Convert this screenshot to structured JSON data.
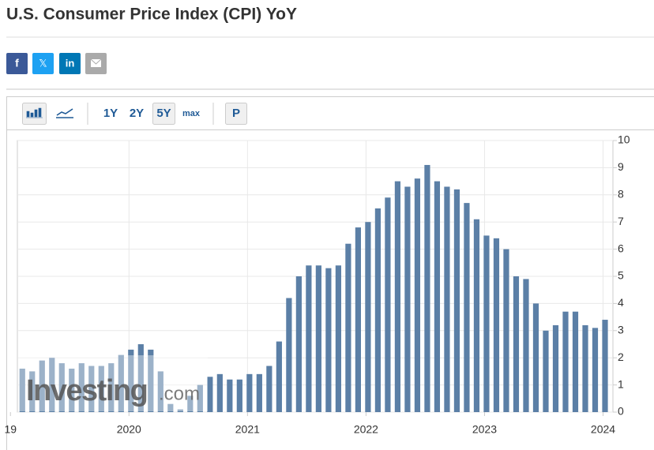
{
  "title": "U.S. Consumer Price Index (CPI) YoY",
  "share_buttons": [
    "f",
    "𝕏",
    "in"
  ],
  "toolbar": {
    "ranges": [
      "1Y",
      "2Y",
      "5Y",
      "max"
    ],
    "print": "P"
  },
  "chart_data": {
    "type": "bar",
    "watermark": [
      "Investing",
      ".com"
    ],
    "color": "#5b7fa6",
    "categories": [
      null,
      null,
      null,
      null,
      null,
      null,
      null,
      null,
      null,
      null,
      null,
      null,
      null,
      null,
      null,
      null,
      null,
      null,
      null,
      null,
      null,
      null,
      null,
      null,
      null,
      null,
      null,
      null,
      null,
      null,
      null,
      null,
      null,
      null,
      null,
      null,
      null,
      null,
      null,
      null,
      null,
      null,
      null,
      null,
      null,
      null,
      null,
      null,
      null,
      null,
      null,
      null,
      null,
      null,
      null,
      null,
      null,
      null,
      null,
      null
    ],
    "values": [
      1.6,
      1.5,
      1.9,
      2.0,
      1.8,
      1.6,
      1.8,
      1.7,
      1.7,
      1.8,
      2.1,
      2.3,
      2.5,
      2.3,
      1.5,
      0.3,
      0.1,
      0.6,
      1.0,
      1.3,
      1.4,
      1.2,
      1.2,
      1.4,
      1.4,
      1.7,
      2.6,
      4.2,
      5.0,
      5.4,
      5.4,
      5.3,
      5.4,
      6.2,
      6.8,
      7.0,
      7.5,
      7.9,
      8.5,
      8.3,
      8.6,
      9.1,
      8.5,
      8.3,
      8.2,
      7.7,
      7.1,
      6.5,
      6.4,
      6.0,
      5.0,
      4.9,
      4.0,
      3.0,
      3.2,
      3.7,
      3.7,
      3.2,
      3.1,
      3.4
    ],
    "xlim": [
      -0.5,
      59.8
    ],
    "xticks": [
      {
        "value": -1.2,
        "label": "19"
      },
      {
        "value": 10.8,
        "label": "2020"
      },
      {
        "value": 22.8,
        "label": "2021"
      },
      {
        "value": 34.8,
        "label": "2022"
      },
      {
        "value": 46.8,
        "label": "2023"
      },
      {
        "value": 58.8,
        "label": "2024"
      }
    ],
    "ylim": [
      0,
      10
    ],
    "yticks": [
      0,
      1,
      2,
      3,
      4,
      5,
      6,
      7,
      8,
      9,
      10
    ],
    "grid": true
  }
}
